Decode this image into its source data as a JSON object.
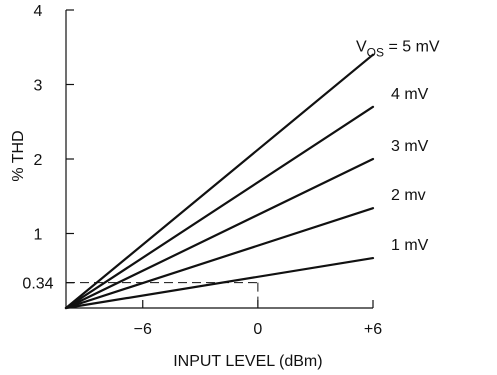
{
  "chart_data": {
    "type": "line",
    "xlabel": "INPUT LEVEL (dBm)",
    "ylabel": "% THD",
    "xlim": [
      -10,
      6
    ],
    "ylim": [
      0,
      4
    ],
    "x_ticks": [
      {
        "value": -6,
        "label": "−6"
      },
      {
        "value": 0,
        "label": "0"
      },
      {
        "value": 6,
        "label": "+6"
      }
    ],
    "y_ticks": [
      {
        "value": 1,
        "label": "1"
      },
      {
        "value": 2,
        "label": "2"
      },
      {
        "value": 3,
        "label": "3"
      },
      {
        "value": 4,
        "label": "4"
      }
    ],
    "annotations": [
      {
        "type": "reference",
        "x": 0,
        "y": 0.34,
        "y_label": "0.34",
        "style": "dashed"
      }
    ],
    "series": [
      {
        "name": "V_OS = 5 mV",
        "label_main": "V",
        "label_sub": "OS",
        "label_rest": " = 5 mV",
        "x": [
          -10,
          6
        ],
        "y": [
          0,
          3.4
        ]
      },
      {
        "name": "4 mV",
        "label_main": "4 mV",
        "label_sub": "",
        "label_rest": "",
        "x": [
          -10,
          6
        ],
        "y": [
          0,
          2.7
        ]
      },
      {
        "name": "3 mV",
        "label_main": "3 mV",
        "label_sub": "",
        "label_rest": "",
        "x": [
          -10,
          6
        ],
        "y": [
          0,
          2.0
        ]
      },
      {
        "name": "2 mv",
        "label_main": "2 mv",
        "label_sub": "",
        "label_rest": "",
        "x": [
          -10,
          6
        ],
        "y": [
          0,
          1.34
        ]
      },
      {
        "name": "1 mV",
        "label_main": "1 mV",
        "label_sub": "",
        "label_rest": "",
        "x": [
          -10,
          6
        ],
        "y": [
          0,
          0.67
        ]
      }
    ]
  }
}
